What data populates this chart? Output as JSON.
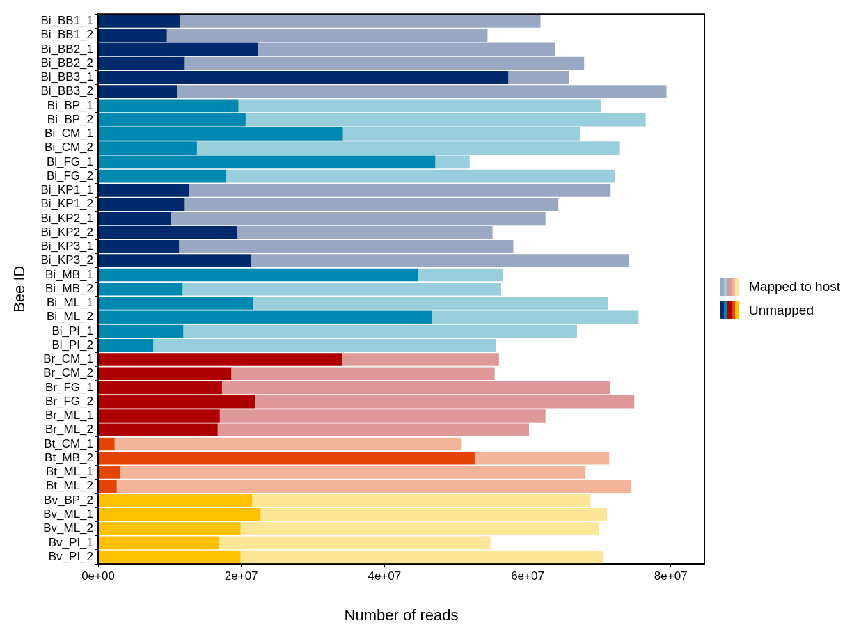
{
  "chart_data": {
    "type": "bar",
    "orientation": "horizontal",
    "stacked": true,
    "xlabel": "Number of reads",
    "ylabel": "Bee ID",
    "legend": "right",
    "grid": false,
    "categories": [
      "Bi_BB1_1",
      "Bi_BB1_2",
      "Bi_BB2_1",
      "Bi_BB2_2",
      "Bi_BB3_1",
      "Bi_BB3_2",
      "Bi_BP_1",
      "Bi_BP_2",
      "Bi_CM_1",
      "Bi_CM_2",
      "Bi_FG_1",
      "Bi_FG_2",
      "Bi_KP1_1",
      "Bi_KP1_2",
      "Bi_KP2_1",
      "Bi_KP2_2",
      "Bi_KP3_1",
      "Bi_KP3_2",
      "Bi_MB_1",
      "Bi_MB_2",
      "Bi_ML_1",
      "Bi_ML_2",
      "Bi_PI_1",
      "Bi_PI_2",
      "Br_CM_1",
      "Br_CM_2",
      "Br_FG_1",
      "Br_FG_2",
      "Br_ML_1",
      "Br_ML_2",
      "Bt_CM_1",
      "Bt_MB_2",
      "Bt_ML_1",
      "Bt_ML_2",
      "Bv_BP_2",
      "Bv_ML_1",
      "Bv_ML_2",
      "Bv_PI_1",
      "Bv_PI_2"
    ],
    "xlim": [
      0,
      84700000
    ],
    "xticks": [
      {
        "value": 0,
        "label": "0e+00"
      },
      {
        "value": 20000000,
        "label": "2e+07"
      },
      {
        "value": 40000000,
        "label": "4e+07"
      },
      {
        "value": 60000000,
        "label": "6e+07"
      },
      {
        "value": 80000000,
        "label": "8e+07"
      }
    ],
    "series": [
      {
        "name": "Unmapped",
        "values": [
          11400000,
          9600000,
          22300000,
          12100000,
          57300000,
          11000000,
          19600000,
          20600000,
          34200000,
          13800000,
          47100000,
          17900000,
          12700000,
          12100000,
          10200000,
          19400000,
          11300000,
          21400000,
          44700000,
          11800000,
          21600000,
          46600000,
          11900000,
          7700000,
          34100000,
          18600000,
          17300000,
          21900000,
          17000000,
          16700000,
          2300000,
          52600000,
          3100000,
          2600000,
          21500000,
          22700000,
          19900000,
          16900000,
          19900000
        ],
        "colors": [
          "#002a6c",
          "#002a6c",
          "#002a6c",
          "#002a6c",
          "#002a6c",
          "#002a6c",
          "#0089b0",
          "#0089b0",
          "#0089b0",
          "#0089b0",
          "#0089b0",
          "#0089b0",
          "#002a6c",
          "#002a6c",
          "#002a6c",
          "#002a6c",
          "#002a6c",
          "#002a6c",
          "#0089b0",
          "#0089b0",
          "#0089b0",
          "#0089b0",
          "#0089b0",
          "#0089b0",
          "#ad0000",
          "#ad0000",
          "#ad0000",
          "#ad0000",
          "#ad0000",
          "#ad0000",
          "#e34402",
          "#e34402",
          "#e34402",
          "#e34402",
          "#fdc100",
          "#fdc100",
          "#fdc100",
          "#fdc100",
          "#fdc100"
        ]
      },
      {
        "name": "Mapped to host",
        "values": [
          50400000,
          44800000,
          41500000,
          55800000,
          8500000,
          68400000,
          50700000,
          55900000,
          33100000,
          59000000,
          4800000,
          54300000,
          58900000,
          52200000,
          52300000,
          35700000,
          46700000,
          52800000,
          11800000,
          44500000,
          49600000,
          28900000,
          55000000,
          47900000,
          21900000,
          36800000,
          54200000,
          53000000,
          45500000,
          43500000,
          48500000,
          18800000,
          65000000,
          71900000,
          47300000,
          48400000,
          50100000,
          37900000,
          50600000
        ],
        "colors": [
          "#99a9c4",
          "#99a9c4",
          "#99a9c4",
          "#99a9c4",
          "#99a9c4",
          "#99a9c4",
          "#99cedc",
          "#99cedc",
          "#99cedc",
          "#99cedc",
          "#99cedc",
          "#99cedc",
          "#99a9c4",
          "#99a9c4",
          "#99a9c4",
          "#99a9c4",
          "#99a9c4",
          "#99a9c4",
          "#99cedc",
          "#99cedc",
          "#99cedc",
          "#99cedc",
          "#99cedc",
          "#99cedc",
          "#de9898",
          "#de9898",
          "#de9898",
          "#de9898",
          "#de9898",
          "#de9898",
          "#f3b49a",
          "#f3b49a",
          "#f3b49a",
          "#f3b49a",
          "#fee699",
          "#fee699",
          "#fee699",
          "#fee699",
          "#fee699"
        ]
      }
    ]
  }
}
